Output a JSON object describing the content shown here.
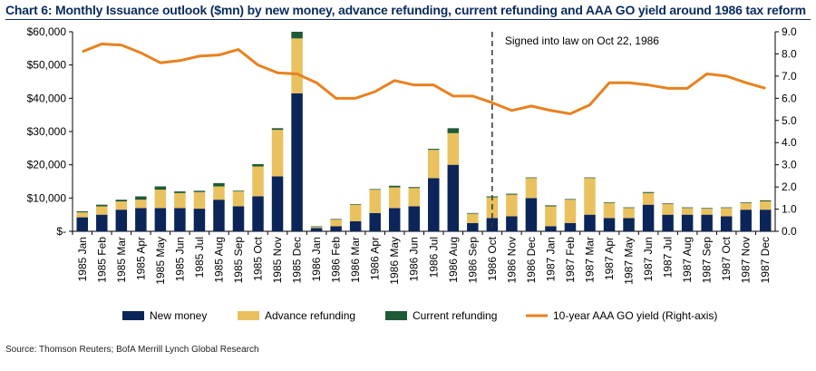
{
  "title": "Chart 6: Monthly Issuance outlook ($mn) by new money, advance refunding, current refunding and AAA GO yield around 1986 tax reform",
  "source": "Source: Thomson Reuters; BofA Merrill Lynch Global Research",
  "colors": {
    "new_money": "#0b2559",
    "advance_refunding": "#e9c15e",
    "current_refunding": "#1f5a36",
    "yield": "#e9811e",
    "title": "#0a2b5e"
  },
  "chart_data": {
    "type": "bar",
    "stacked": true,
    "categories": [
      "1985 Jan",
      "1985 Feb",
      "1985 Mar",
      "1985 Apr",
      "1985 May",
      "1985 Jun",
      "1985 Jul",
      "1985 Aug",
      "1985 Sep",
      "1985 Oct",
      "1985 Nov",
      "1985 Dec",
      "1986 Jan",
      "1986 Feb",
      "1986 Mar",
      "1986 Apr",
      "1986 May",
      "1986 Jun",
      "1986 Jul",
      "1986 Aug",
      "1986 Sep",
      "1986 Oct",
      "1986 Nov",
      "1986 Dec",
      "1987 Jan",
      "1987 Feb",
      "1987 Mar",
      "1987 Apr",
      "1987 May",
      "1987 Jun",
      "1987 Jul",
      "1987 Aug",
      "1987 Sep",
      "1987 Oct",
      "1987 Nov",
      "1987 Dec"
    ],
    "series": [
      {
        "name": "New money",
        "type": "bar",
        "axis": "left",
        "values": [
          4200,
          5000,
          6500,
          7000,
          7000,
          7000,
          6800,
          9500,
          7500,
          10500,
          16500,
          41500,
          1000,
          1500,
          3000,
          5500,
          7000,
          7500,
          16000,
          20000,
          2500,
          4000,
          4500,
          10000,
          1500,
          2500,
          5000,
          4000,
          4000,
          8000,
          5000,
          5000,
          5000,
          4500,
          6500,
          6500
        ]
      },
      {
        "name": "Advance refunding",
        "type": "bar",
        "axis": "left",
        "values": [
          1500,
          2500,
          2500,
          2500,
          5500,
          4500,
          5000,
          4000,
          4500,
          9000,
          14000,
          16500,
          300,
          2000,
          5000,
          7000,
          6200,
          5500,
          8500,
          9500,
          2800,
          6200,
          6500,
          6000,
          6000,
          7000,
          11000,
          4500,
          3000,
          3500,
          3200,
          2000,
          1800,
          2500,
          2000,
          2500
        ]
      },
      {
        "name": "Current refunding",
        "type": "bar",
        "axis": "left",
        "values": [
          300,
          500,
          500,
          1000,
          1000,
          500,
          400,
          1000,
          200,
          700,
          500,
          2000,
          200,
          200,
          200,
          200,
          500,
          300,
          300,
          1500,
          200,
          300,
          300,
          200,
          300,
          200,
          200,
          200,
          200,
          300,
          200,
          200,
          200,
          200,
          200,
          300
        ]
      },
      {
        "name": "10-year AAA GO yield (Right-axis)",
        "type": "line",
        "axis": "right",
        "values": [
          8.1,
          8.45,
          8.4,
          8.05,
          7.6,
          7.7,
          7.9,
          7.95,
          8.2,
          7.5,
          7.15,
          7.1,
          6.7,
          6.0,
          6.0,
          6.3,
          6.8,
          6.6,
          6.6,
          6.1,
          6.1,
          5.8,
          5.45,
          5.65,
          5.45,
          5.3,
          5.7,
          6.7,
          6.7,
          6.6,
          6.45,
          6.45,
          7.1,
          7.0,
          6.7,
          6.45
        ]
      }
    ],
    "y_left": {
      "min": 0,
      "max": 60000,
      "ticks": [
        "$-",
        "$10,000",
        "$20,000",
        "$30,000",
        "$40,000",
        "$50,000",
        "$60,000"
      ]
    },
    "y_right": {
      "min": 0,
      "max": 9,
      "ticks": [
        "0.0",
        "1.0",
        "2.0",
        "3.0",
        "4.0",
        "5.0",
        "6.0",
        "7.0",
        "8.0",
        "9.0"
      ]
    },
    "annotation": {
      "text": "Signed into law on Oct 22, 1986",
      "category": "1986 Oct"
    },
    "legend": {
      "placement": "bottom"
    }
  }
}
